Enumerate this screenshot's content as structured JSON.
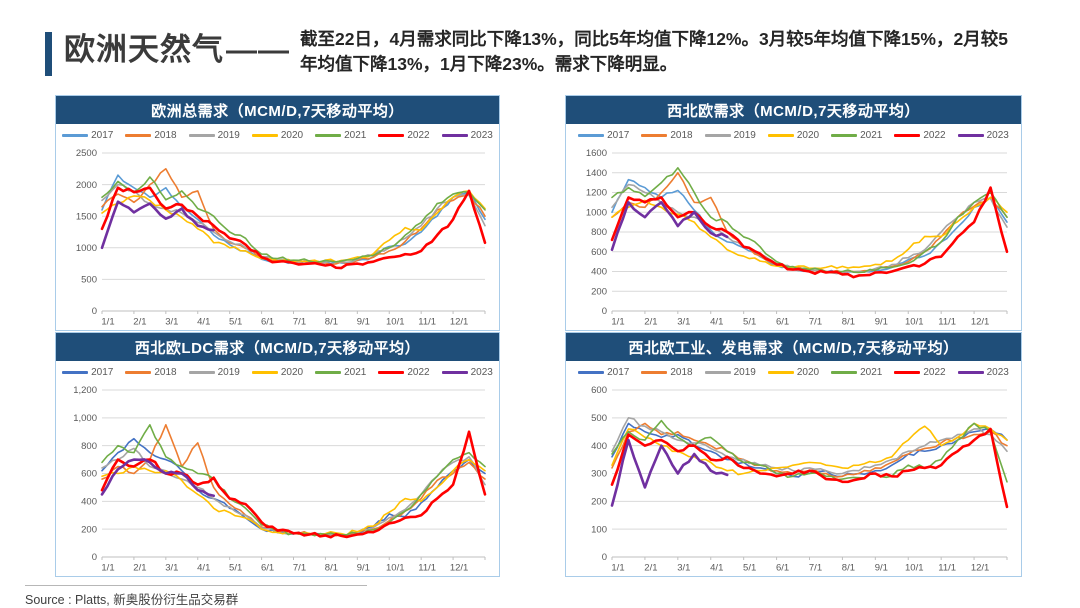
{
  "header": {
    "title": "欧洲天然气",
    "title_dash": "——",
    "summary": "截至22日，4月需求同比下降13%，同比5年均值下降12%。3月较5年均值下降15%，2月较5年均值下降13%，1月下降23%。需求下降明显。",
    "accent_color": "#1F4E79"
  },
  "footer": {
    "source": "Source : Platts, 新奥股份衍生品交易群"
  },
  "colors": {
    "panel_header": "#1F4E79",
    "panel_border": "#A9CCE9",
    "gridline": "#D9D9D9",
    "axis_line": "#BFBFBF",
    "axis_text": "#595959"
  },
  "chart_data": [
    {
      "type": "line",
      "title": "欧洲总需求（MCM/D,7天移动平均）",
      "ylim": [
        0,
        2500
      ],
      "y_ticks": [
        "0",
        "500",
        "1000",
        "1500",
        "2000",
        "2500"
      ],
      "x_ticks": [
        "1/1",
        "2/1",
        "3/1",
        "4/1",
        "5/1",
        "6/1",
        "7/1",
        "8/1",
        "9/1",
        "10/1",
        "11/1",
        "12/1"
      ],
      "x": [
        "1/1",
        "1/15",
        "2/1",
        "2/15",
        "3/1",
        "3/15",
        "4/1",
        "4/15",
        "5/1",
        "5/15",
        "6/1",
        "6/15",
        "7/1",
        "7/15",
        "8/1",
        "8/15",
        "9/1",
        "9/15",
        "10/1",
        "10/15",
        "11/1",
        "11/15",
        "12/1",
        "12/15",
        "12/31"
      ],
      "series": [
        {
          "name": "2017",
          "color": "#5B9BD5",
          "width": 1.6,
          "values": [
            1600,
            2150,
            1950,
            1800,
            1950,
            1650,
            1450,
            1200,
            1050,
            950,
            820,
            780,
            770,
            760,
            780,
            760,
            800,
            860,
            1020,
            1060,
            1250,
            1500,
            1800,
            1880,
            1450
          ]
        },
        {
          "name": "2018",
          "color": "#ED7D31",
          "width": 1.6,
          "values": [
            1650,
            1850,
            1720,
            2000,
            2250,
            1800,
            1900,
            1300,
            1080,
            990,
            850,
            800,
            780,
            770,
            760,
            775,
            800,
            850,
            950,
            1100,
            1300,
            1600,
            1750,
            1850,
            1500
          ]
        },
        {
          "name": "2019",
          "color": "#A5A5A5",
          "width": 1.6,
          "values": [
            1750,
            2000,
            1900,
            1700,
            1620,
            1550,
            1400,
            1250,
            1100,
            1000,
            860,
            800,
            790,
            780,
            770,
            780,
            820,
            880,
            1000,
            1150,
            1350,
            1620,
            1800,
            1830,
            1350
          ]
        },
        {
          "name": "2020",
          "color": "#FFC000",
          "width": 1.6,
          "values": [
            1550,
            1700,
            1820,
            1750,
            1600,
            1480,
            1300,
            1080,
            1000,
            950,
            830,
            795,
            785,
            795,
            805,
            800,
            855,
            905,
            1120,
            1320,
            1280,
            1550,
            1800,
            1900,
            1620
          ]
        },
        {
          "name": "2021",
          "color": "#70AD47",
          "width": 1.6,
          "values": [
            1800,
            2050,
            1880,
            2120,
            1760,
            1900,
            1620,
            1500,
            1250,
            1150,
            900,
            830,
            805,
            790,
            800,
            790,
            830,
            880,
            1000,
            1200,
            1400,
            1700,
            1850,
            1880,
            1600
          ]
        },
        {
          "name": "2022",
          "color": "#FF0000",
          "width": 2.6,
          "values": [
            1300,
            1950,
            1880,
            1950,
            1620,
            1680,
            1500,
            1350,
            1150,
            1050,
            850,
            780,
            760,
            750,
            720,
            680,
            750,
            780,
            850,
            900,
            950,
            1200,
            1450,
            1900,
            1080
          ]
        },
        {
          "name": "2023",
          "color": "#7030A0",
          "width": 2.6,
          "values": [
            1000,
            1730,
            1560,
            1700,
            1460,
            1620,
            1350,
            1280
          ]
        }
      ]
    },
    {
      "type": "line",
      "title": "西北欧需求（MCM/D,7天移动平均）",
      "ylim": [
        0,
        1600
      ],
      "y_ticks": [
        "0",
        "200",
        "400",
        "600",
        "800",
        "1000",
        "1200",
        "1400",
        "1600"
      ],
      "x_ticks": [
        "1/1",
        "2/1",
        "3/1",
        "4/1",
        "5/1",
        "6/1",
        "7/1",
        "8/1",
        "9/1",
        "10/1",
        "11/1",
        "12/1"
      ],
      "x": [
        "1/1",
        "1/15",
        "2/1",
        "2/15",
        "3/1",
        "3/15",
        "4/1",
        "4/15",
        "5/1",
        "5/15",
        "6/1",
        "6/15",
        "7/1",
        "7/15",
        "8/1",
        "8/15",
        "9/1",
        "9/15",
        "10/1",
        "10/15",
        "11/1",
        "11/15",
        "12/1",
        "12/15",
        "12/31"
      ],
      "series": [
        {
          "name": "2017",
          "color": "#5B9BD5",
          "width": 1.6,
          "values": [
            1000,
            1330,
            1250,
            1150,
            1220,
            1020,
            820,
            700,
            640,
            550,
            460,
            420,
            405,
            395,
            390,
            395,
            410,
            440,
            520,
            560,
            700,
            850,
            1050,
            1150,
            900
          ]
        },
        {
          "name": "2018",
          "color": "#ED7D31",
          "width": 1.6,
          "values": [
            950,
            1100,
            1050,
            1200,
            1400,
            1100,
            1150,
            800,
            650,
            560,
            470,
            430,
            410,
            400,
            390,
            400,
            420,
            450,
            500,
            600,
            750,
            950,
            1060,
            1150,
            950
          ]
        },
        {
          "name": "2019",
          "color": "#A5A5A5",
          "width": 1.6,
          "values": [
            1050,
            1280,
            1200,
            1100,
            1000,
            950,
            850,
            750,
            650,
            580,
            480,
            430,
            412,
            402,
            392,
            402,
            430,
            470,
            540,
            620,
            800,
            950,
            1100,
            1140,
            850
          ]
        },
        {
          "name": "2020",
          "color": "#FFC000",
          "width": 1.6,
          "values": [
            950,
            1050,
            1120,
            1050,
            980,
            900,
            750,
            620,
            555,
            505,
            455,
            442,
            432,
            442,
            452,
            442,
            472,
            505,
            625,
            755,
            755,
            905,
            1050,
            1150,
            1000
          ]
        },
        {
          "name": "2021",
          "color": "#70AD47",
          "width": 1.6,
          "values": [
            1150,
            1250,
            1160,
            1300,
            1450,
            1200,
            950,
            900,
            750,
            650,
            500,
            450,
            420,
            400,
            400,
            390,
            412,
            442,
            482,
            600,
            700,
            950,
            1100,
            1200,
            950
          ]
        },
        {
          "name": "2022",
          "color": "#FF0000",
          "width": 2.6,
          "values": [
            720,
            1150,
            1100,
            1150,
            950,
            1000,
            850,
            800,
            650,
            580,
            470,
            420,
            400,
            390,
            370,
            360,
            390,
            400,
            450,
            480,
            550,
            750,
            900,
            1250,
            600
          ]
        },
        {
          "name": "2023",
          "color": "#7030A0",
          "width": 2.6,
          "values": [
            620,
            1100,
            950,
            1100,
            860,
            1000,
            790,
            750
          ]
        }
      ]
    },
    {
      "type": "line",
      "title": "西北欧LDC需求（MCM/D,7天移动平均）",
      "ylim": [
        0,
        1200
      ],
      "y_ticks": [
        "0",
        "200",
        "400",
        "600",
        "800",
        "1,000",
        "1,200"
      ],
      "x_ticks": [
        "1/1",
        "2/1",
        "3/1",
        "4/1",
        "5/1",
        "6/1",
        "7/1",
        "8/1",
        "9/1",
        "10/1",
        "11/1",
        "12/1"
      ],
      "x": [
        "1/1",
        "1/15",
        "2/1",
        "2/15",
        "3/1",
        "3/15",
        "4/1",
        "4/15",
        "5/1",
        "5/15",
        "6/1",
        "6/15",
        "7/1",
        "7/15",
        "8/1",
        "8/15",
        "9/1",
        "9/15",
        "10/1",
        "10/15",
        "11/1",
        "11/15",
        "12/1",
        "12/15",
        "12/31"
      ],
      "series": [
        {
          "name": "2017",
          "color": "#4472C4",
          "width": 1.6,
          "values": [
            620,
            750,
            850,
            750,
            700,
            620,
            480,
            420,
            350,
            280,
            200,
            175,
            165,
            160,
            158,
            158,
            168,
            220,
            310,
            290,
            390,
            500,
            620,
            700,
            600
          ]
        },
        {
          "name": "2018",
          "color": "#ED7D31",
          "width": 1.6,
          "values": [
            560,
            650,
            600,
            700,
            950,
            650,
            820,
            500,
            380,
            300,
            215,
            180,
            170,
            165,
            160,
            162,
            175,
            200,
            260,
            330,
            420,
            550,
            600,
            680,
            560
          ]
        },
        {
          "name": "2019",
          "color": "#A5A5A5",
          "width": 1.6,
          "values": [
            640,
            700,
            780,
            650,
            620,
            560,
            500,
            420,
            360,
            300,
            210,
            175,
            168,
            162,
            158,
            160,
            172,
            212,
            282,
            342,
            450,
            580,
            680,
            720,
            520
          ]
        },
        {
          "name": "2020",
          "color": "#FFC000",
          "width": 1.6,
          "values": [
            580,
            600,
            650,
            620,
            620,
            550,
            450,
            350,
            320,
            280,
            200,
            178,
            172,
            170,
            168,
            168,
            182,
            222,
            322,
            420,
            400,
            500,
            620,
            700,
            620
          ]
        },
        {
          "name": "2021",
          "color": "#70AD47",
          "width": 1.6,
          "values": [
            680,
            800,
            750,
            950,
            720,
            650,
            600,
            560,
            420,
            350,
            230,
            185,
            172,
            165,
            162,
            160,
            168,
            195,
            250,
            330,
            450,
            580,
            700,
            750,
            650
          ]
        },
        {
          "name": "2022",
          "color": "#FF0000",
          "width": 2.6,
          "values": [
            480,
            700,
            650,
            700,
            600,
            600,
            520,
            570,
            420,
            380,
            250,
            190,
            170,
            162,
            155,
            152,
            162,
            178,
            242,
            282,
            300,
            420,
            520,
            900,
            450
          ]
        },
        {
          "name": "2023",
          "color": "#7030A0",
          "width": 2.6,
          "values": [
            450,
            630,
            700,
            680,
            600,
            600,
            480,
            440
          ]
        }
      ]
    },
    {
      "type": "line",
      "title": "西北欧工业、发电需求（MCM/D,7天移动平均）",
      "ylim": [
        0,
        600
      ],
      "y_ticks": [
        "0",
        "100",
        "200",
        "300",
        "400",
        "500",
        "600"
      ],
      "x_ticks": [
        "1/1",
        "2/1",
        "3/1",
        "4/1",
        "5/1",
        "6/1",
        "7/1",
        "8/1",
        "9/1",
        "10/1",
        "11/1",
        "12/1"
      ],
      "x": [
        "1/1",
        "1/15",
        "2/1",
        "2/15",
        "3/1",
        "3/15",
        "4/1",
        "4/15",
        "5/1",
        "5/15",
        "6/1",
        "6/15",
        "7/1",
        "7/15",
        "8/1",
        "8/15",
        "9/1",
        "9/15",
        "10/1",
        "10/15",
        "11/1",
        "11/15",
        "12/1",
        "12/15",
        "12/31"
      ],
      "series": [
        {
          "name": "2017",
          "color": "#4472C4",
          "width": 1.6,
          "values": [
            360,
            480,
            450,
            430,
            440,
            400,
            380,
            350,
            340,
            320,
            300,
            290,
            300,
            310,
            290,
            300,
            310,
            330,
            370,
            380,
            400,
            420,
            450,
            460,
            420
          ]
        },
        {
          "name": "2018",
          "color": "#ED7D31",
          "width": 1.6,
          "values": [
            320,
            450,
            480,
            440,
            450,
            420,
            400,
            380,
            350,
            330,
            310,
            300,
            310,
            300,
            290,
            300,
            320,
            340,
            370,
            390,
            410,
            430,
            440,
            450,
            400
          ]
        },
        {
          "name": "2019",
          "color": "#A5A5A5",
          "width": 1.6,
          "values": [
            380,
            500,
            470,
            450,
            420,
            410,
            390,
            360,
            350,
            330,
            320,
            310,
            320,
            310,
            300,
            310,
            330,
            350,
            380,
            400,
            420,
            440,
            460,
            440,
            380
          ]
        },
        {
          "name": "2020",
          "color": "#FFC000",
          "width": 1.6,
          "values": [
            330,
            460,
            430,
            400,
            380,
            360,
            340,
            310,
            300,
            310,
            320,
            330,
            340,
            330,
            320,
            330,
            340,
            360,
            420,
            470,
            400,
            430,
            480,
            460,
            420
          ]
        },
        {
          "name": "2021",
          "color": "#70AD47",
          "width": 1.6,
          "values": [
            370,
            450,
            420,
            490,
            430,
            400,
            430,
            380,
            340,
            330,
            300,
            290,
            300,
            290,
            280,
            285,
            300,
            290,
            330,
            320,
            350,
            420,
            480,
            450,
            270
          ]
        },
        {
          "name": "2022",
          "color": "#FF0000",
          "width": 2.6,
          "values": [
            260,
            440,
            400,
            420,
            380,
            400,
            350,
            360,
            320,
            300,
            290,
            300,
            310,
            280,
            270,
            280,
            300,
            290,
            310,
            320,
            330,
            380,
            420,
            460,
            180
          ]
        },
        {
          "name": "2023",
          "color": "#7030A0",
          "width": 2.6,
          "values": [
            185,
            420,
            250,
            400,
            300,
            370,
            310,
            295
          ]
        }
      ]
    }
  ]
}
